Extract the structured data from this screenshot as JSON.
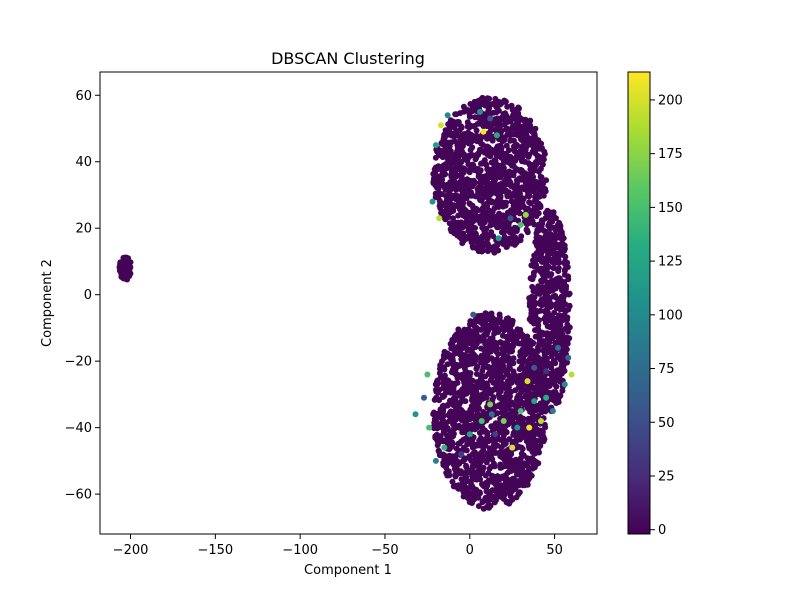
{
  "chart_data": {
    "type": "scatter",
    "title": "DBSCAN Clustering",
    "xlabel": "Component 1",
    "ylabel": "Component 2",
    "xlim": [
      -218,
      75
    ],
    "ylim": [
      -72,
      67
    ],
    "x_ticks": [
      -200,
      -150,
      -100,
      -50,
      0,
      50
    ],
    "x_tick_labels": [
      "−200",
      "−150",
      "−100",
      "−50",
      "0",
      "50"
    ],
    "y_ticks": [
      -60,
      -40,
      -20,
      0,
      20,
      40,
      60
    ],
    "y_tick_labels": [
      "−60",
      "−40",
      "−20",
      "0",
      "20",
      "40",
      "60"
    ],
    "grid": false,
    "colormap": "viridis",
    "colorbar": {
      "range": [
        -2,
        213
      ],
      "ticks": [
        0,
        25,
        50,
        75,
        100,
        125,
        150,
        175,
        200
      ],
      "tick_labels": [
        "0",
        "25",
        "50",
        "75",
        "100",
        "125",
        "150",
        "175",
        "200"
      ]
    },
    "point_groups": [
      {
        "label": "small-cluster",
        "shape": "ellipse",
        "cx": -203,
        "cy": 8,
        "rx": 3.5,
        "ry": 3.5,
        "value": 0
      },
      {
        "label": "upper-blob",
        "shape": "ellipse",
        "cx": 12,
        "cy": 36,
        "rx": 33,
        "ry": 23,
        "value": 0
      },
      {
        "label": "lower-blob",
        "shape": "ellipse",
        "cx": 12,
        "cy": -35,
        "rx": 33,
        "ry": 29,
        "value": 0
      },
      {
        "label": "right-bridge",
        "shape": "ellipse",
        "cx": 47,
        "cy": -5,
        "rx": 12,
        "ry": 30,
        "value": 0
      }
    ],
    "highlight_points": [
      {
        "x": -17,
        "y": 51,
        "value": 200
      },
      {
        "x": -13,
        "y": 54,
        "value": 100
      },
      {
        "x": 8,
        "y": 49,
        "value": 210
      },
      {
        "x": 12,
        "y": 53,
        "value": 60
      },
      {
        "x": 6,
        "y": 55,
        "value": 110
      },
      {
        "x": 16,
        "y": 48,
        "value": 130
      },
      {
        "x": -20,
        "y": 45,
        "value": 120
      },
      {
        "x": -22,
        "y": 28,
        "value": 110
      },
      {
        "x": -18,
        "y": 23,
        "value": 190
      },
      {
        "x": 33,
        "y": 24,
        "value": 180
      },
      {
        "x": 30,
        "y": 21,
        "value": 150
      },
      {
        "x": 17,
        "y": 17,
        "value": 110
      },
      {
        "x": 24,
        "y": 23,
        "value": 60
      },
      {
        "x": -32,
        "y": -36,
        "value": 110
      },
      {
        "x": -25,
        "y": -24,
        "value": 150
      },
      {
        "x": -27,
        "y": -31,
        "value": 60
      },
      {
        "x": -15,
        "y": -46,
        "value": 140
      },
      {
        "x": 0,
        "y": -42,
        "value": 120
      },
      {
        "x": -5,
        "y": -48,
        "value": 40
      },
      {
        "x": 12,
        "y": -33,
        "value": 170
      },
      {
        "x": 13,
        "y": -36,
        "value": 80
      },
      {
        "x": 7,
        "y": -38,
        "value": 150
      },
      {
        "x": 25,
        "y": -46,
        "value": 200
      },
      {
        "x": 28,
        "y": -40,
        "value": 110
      },
      {
        "x": 35,
        "y": -40,
        "value": 210
      },
      {
        "x": 34,
        "y": -26,
        "value": 200
      },
      {
        "x": 30,
        "y": -35,
        "value": 150
      },
      {
        "x": 38,
        "y": -32,
        "value": 120
      },
      {
        "x": 42,
        "y": -38,
        "value": 190
      },
      {
        "x": 45,
        "y": -31,
        "value": 130
      },
      {
        "x": 49,
        "y": -35,
        "value": 90
      },
      {
        "x": 52,
        "y": -16,
        "value": 80
      },
      {
        "x": 56,
        "y": -27,
        "value": 100
      },
      {
        "x": 60,
        "y": -24,
        "value": 190
      },
      {
        "x": 58,
        "y": -19,
        "value": 70
      },
      {
        "x": 38,
        "y": -22,
        "value": 60
      },
      {
        "x": 45,
        "y": -23,
        "value": 30
      },
      {
        "x": -20,
        "y": -50,
        "value": 90
      },
      {
        "x": -24,
        "y": -40,
        "value": 150
      },
      {
        "x": 2,
        "y": -6,
        "value": 60
      },
      {
        "x": 20,
        "y": -38,
        "value": 170
      },
      {
        "x": 15,
        "y": -42,
        "value": 40
      }
    ]
  }
}
